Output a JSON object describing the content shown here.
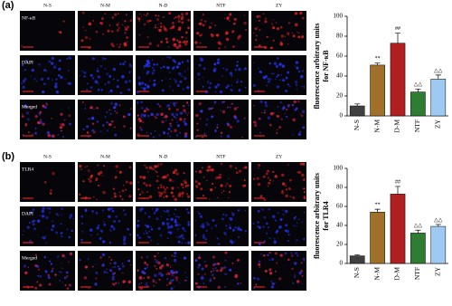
{
  "panels": [
    {
      "label": "(a)",
      "columns": [
        "N-S",
        "N-M",
        "N-D",
        "NTF",
        "ZY"
      ],
      "rows": [
        "NF-κB",
        "DAPI",
        "Merged"
      ]
    },
    {
      "label": "(b)",
      "columns": [
        "N-S",
        "N-M",
        "N-D",
        "NTF",
        "ZY"
      ],
      "rows": [
        "TLR4",
        "DAPI",
        "Merged"
      ]
    }
  ],
  "chart_data": [
    {
      "type": "bar",
      "y_label": [
        "fluorescence arbitrary units",
        "for NF-κB"
      ],
      "categories": [
        "N-S",
        "N-M",
        "D-M",
        "NTF",
        "ZY"
      ],
      "values": [
        10,
        51,
        73,
        24,
        37
      ],
      "errors": [
        2,
        2,
        10,
        3,
        4
      ],
      "annotations": [
        null,
        "**",
        "##",
        "△△",
        "△△"
      ],
      "colors": [
        "#404040",
        "#a0702a",
        "#b02020",
        "#2e7d32",
        "#9ec9f0"
      ],
      "ylim": [
        0,
        100
      ],
      "yticks": [
        0,
        20,
        40,
        60,
        80,
        100
      ]
    },
    {
      "type": "bar",
      "y_label": [
        "fluorescence arbitrary units",
        "for TLR4"
      ],
      "categories": [
        "N-S",
        "N-M",
        "D-M",
        "NTF",
        "ZY"
      ],
      "values": [
        8,
        54,
        73,
        32,
        39
      ],
      "errors": [
        1,
        3,
        8,
        3,
        2
      ],
      "annotations": [
        null,
        "**",
        "##",
        "△△",
        "△△"
      ],
      "colors": [
        "#404040",
        "#a0702a",
        "#b02020",
        "#2e7d32",
        "#9ec9f0"
      ],
      "ylim": [
        0,
        100
      ],
      "yticks": [
        0,
        20,
        40,
        60,
        80,
        100
      ]
    }
  ]
}
